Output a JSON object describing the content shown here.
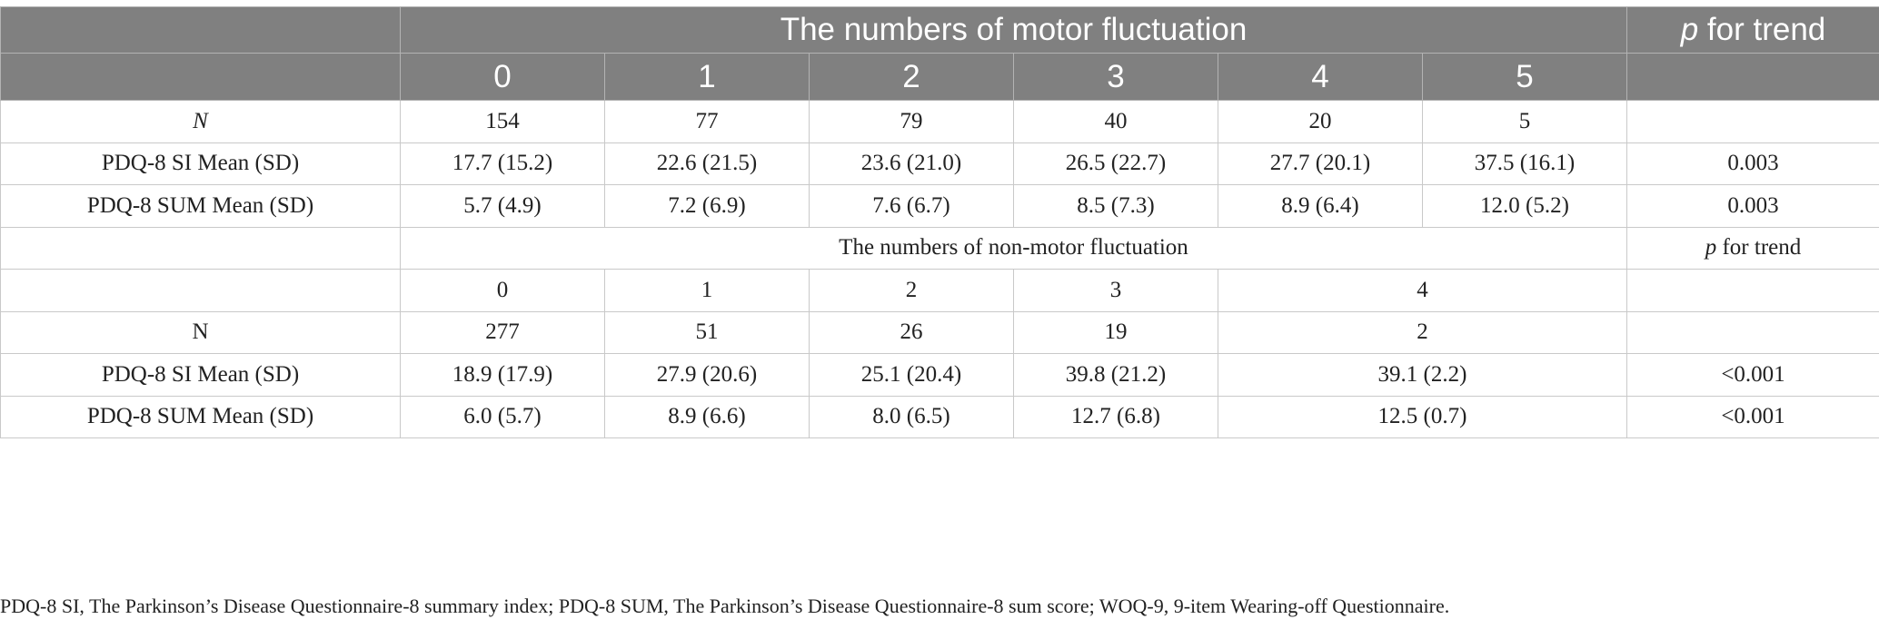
{
  "header": {
    "group_title": "The numbers of motor fluctuation",
    "p_trend_italic": "p",
    "p_trend_rest": " for trend",
    "columns": [
      "0",
      "1",
      "2",
      "3",
      "4",
      "5"
    ]
  },
  "motor_rows": [
    {
      "label": "N",
      "values": [
        "154",
        "77",
        "79",
        "40",
        "20",
        "5"
      ],
      "p": ""
    },
    {
      "label": "PDQ-8 SI Mean (SD)",
      "values": [
        "17.7 (15.2)",
        "22.6 (21.5)",
        "23.6 (21.0)",
        "26.5 (22.7)",
        "27.7 (20.1)",
        "37.5 (16.1)"
      ],
      "p": "0.003"
    },
    {
      "label": "PDQ-8 SUM Mean (SD)",
      "values": [
        "5.7 (4.9)",
        "7.2 (6.9)",
        "7.6 (6.7)",
        "8.5 (7.3)",
        "8.9 (6.4)",
        "12.0 (5.2)"
      ],
      "p": "0.003"
    }
  ],
  "nonmotor": {
    "group_title": "The numbers of non-motor fluctuation",
    "p_trend_italic": "p",
    "p_trend_rest": " for trend",
    "columns": [
      "0",
      "1",
      "2",
      "3",
      "4"
    ]
  },
  "nonmotor_rows": [
    {
      "label": "N",
      "values": [
        "277",
        "51",
        "26",
        "19",
        "2"
      ],
      "p": ""
    },
    {
      "label": "PDQ-8 SI Mean (SD)",
      "values": [
        "18.9 (17.9)",
        "27.9 (20.6)",
        "25.1 (20.4)",
        "39.8 (21.2)",
        "39.1 (2.2)"
      ],
      "p": "<0.001"
    },
    {
      "label": "PDQ-8 SUM Mean (SD)",
      "values": [
        "6.0 (5.7)",
        "8.9 (6.6)",
        "8.0 (6.5)",
        "12.7 (6.8)",
        "12.5 (0.7)"
      ],
      "p": "<0.001"
    }
  ],
  "footnote": "PDQ-8 SI, The Parkinson’s Disease Questionnaire-8 summary index; PDQ-8 SUM, The Parkinson’s Disease Questionnaire-8 sum score; WOQ-9, 9-item Wearing-off Questionnaire.",
  "colors": {
    "header_bg": "#808080",
    "header_text": "#ffffff",
    "border": "#c9c9c9",
    "text": "#222222"
  }
}
